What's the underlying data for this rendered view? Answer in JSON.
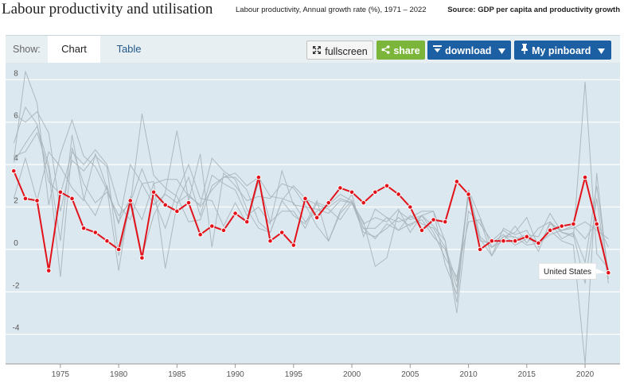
{
  "header": {
    "title": "Labour productivity and utilisation",
    "subtitle": "Labour productivity, Annual growth rate (%), 1971 – 2022",
    "source": "Source: GDP per capita and productivity growth"
  },
  "toolbar": {
    "show_label": "Show:",
    "tabs": [
      {
        "label": "Chart"
      },
      {
        "label": "Table"
      }
    ],
    "fullscreen_label": "fullscreen",
    "share_label": "share",
    "download_label": "download",
    "pinboard_label": "My pinboard",
    "icons": {
      "fullscreen": "expand-arrows-icon",
      "share": "share-icon",
      "download": "download-arrow-icon",
      "pinboard": "pin-icon",
      "caret": "caret-down-icon"
    }
  },
  "colors": {
    "plot_background": "#dbe8ef",
    "highlight_series": "#e3121a",
    "background_series": "#a9b4ba",
    "grid": "#ffffff",
    "accent_blue": "#1c5fa3",
    "share_green": "#7bb539"
  },
  "chart_data": {
    "type": "line",
    "title": "",
    "xlabel": "",
    "ylabel": "",
    "xlim": [
      1970.3,
      2023
    ],
    "ylim": [
      -5.4,
      8.8
    ],
    "xticks": [
      1975,
      1980,
      1985,
      1990,
      1995,
      2000,
      2005,
      2010,
      2015,
      2020
    ],
    "yticks": [
      -4,
      -2,
      0,
      2,
      4,
      6,
      8
    ],
    "grid": true,
    "highlight": {
      "name": "United States",
      "x": [
        1971,
        1972,
        1973,
        1974,
        1975,
        1976,
        1977,
        1978,
        1979,
        1980,
        1981,
        1982,
        1983,
        1984,
        1985,
        1986,
        1987,
        1988,
        1989,
        1990,
        1991,
        1992,
        1993,
        1994,
        1995,
        1996,
        1997,
        1998,
        1999,
        2000,
        2001,
        2002,
        2003,
        2004,
        2005,
        2006,
        2007,
        2008,
        2009,
        2010,
        2011,
        2012,
        2013,
        2014,
        2015,
        2016,
        2017,
        2018,
        2019,
        2020,
        2021,
        2022
      ],
      "values": [
        3.7,
        2.4,
        2.3,
        -1.0,
        2.7,
        2.4,
        1.0,
        0.8,
        0.4,
        0.0,
        2.3,
        -0.4,
        2.7,
        2.1,
        1.8,
        2.2,
        0.7,
        1.1,
        0.9,
        1.7,
        1.3,
        3.4,
        0.4,
        0.8,
        0.2,
        2.4,
        1.5,
        2.2,
        2.9,
        2.7,
        2.2,
        2.7,
        3.0,
        2.6,
        2.0,
        0.9,
        1.4,
        1.3,
        3.2,
        2.6,
        0.0,
        0.4,
        0.4,
        0.4,
        0.6,
        0.3,
        0.9,
        1.1,
        1.2,
        3.4,
        1.2,
        -1.1
      ]
    },
    "background_series": [
      {
        "x": [
          1971,
          1972,
          1973,
          1974,
          1975,
          1976,
          1977,
          1978,
          1979,
          1980,
          1981,
          1982,
          1983,
          1984,
          1985,
          1986,
          1987,
          1988,
          1989,
          1990,
          1991,
          1992,
          1993,
          1994,
          1995,
          1996,
          1997,
          1998,
          1999,
          2000,
          2001,
          2002,
          2003,
          2004,
          2005,
          2006,
          2007,
          2008,
          2009,
          2010,
          2011,
          2012,
          2013,
          2014,
          2015,
          2016,
          2017,
          2018,
          2019,
          2020,
          2021,
          2022
        ],
        "values": [
          4.2,
          8.4,
          6.9,
          2.1,
          4.5,
          6.1,
          4.4,
          3.9,
          2.8,
          1.3,
          2.4,
          1.4,
          3.1,
          3.3,
          3.3,
          2.5,
          2.1,
          4.3,
          3.7,
          3.3,
          1.9,
          1.0,
          0.8,
          2.3,
          1.6,
          1.2,
          2.3,
          0.4,
          1.7,
          2.3,
          1.0,
          0.5,
          1.2,
          0.9,
          1.6,
          1.2,
          1.0,
          0.1,
          -1.5,
          2.5,
          0.4,
          0.3,
          0.7,
          0.2,
          0.5,
          0.3,
          0.7,
          0.9,
          1.0,
          1.3,
          0.9,
          0.5
        ]
      },
      {
        "x": [
          1971,
          1972,
          1973,
          1974,
          1975,
          1976,
          1977,
          1978,
          1979,
          1980,
          1981,
          1982,
          1983,
          1984,
          1985,
          1986,
          1987,
          1988,
          1989,
          1990,
          1991,
          1992,
          1993,
          1994,
          1995,
          1996,
          1997,
          1998,
          1999,
          2000,
          2001,
          2002,
          2003,
          2004,
          2005,
          2006,
          2007,
          2008,
          2009,
          2010,
          2011,
          2012,
          2013,
          2014,
          2015,
          2016,
          2017,
          2018,
          2019,
          2020,
          2021,
          2022
        ],
        "values": [
          6.4,
          6.0,
          6.5,
          5.5,
          1.8,
          4.2,
          3.7,
          4.4,
          3.9,
          -0.3,
          2.1,
          6.4,
          3.5,
          2.9,
          2.5,
          1.3,
          1.4,
          3.0,
          3.4,
          3.6,
          3.0,
          3.4,
          2.5,
          2.4,
          2.2,
          1.3,
          1.8,
          2.1,
          2.6,
          2.3,
          1.2,
          1.5,
          1.3,
          1.9,
          0.8,
          1.6,
          1.8,
          -0.7,
          -2.1,
          2.8,
          0.6,
          0.1,
          0.6,
          0.8,
          1.5,
          0.1,
          1.2,
          0.9,
          1.1,
          0.5,
          1.3,
          0.1
        ]
      },
      {
        "x": [
          1971,
          1972,
          1973,
          1974,
          1975,
          1976,
          1977,
          1978,
          1979,
          1980,
          1981,
          1982,
          1983,
          1984,
          1985,
          1986,
          1987,
          1988,
          1989,
          1990,
          1991,
          1992,
          1993,
          1994,
          1995,
          1996,
          1997,
          1998,
          1999,
          2000,
          2001,
          2002,
          2003,
          2004,
          2005,
          2006,
          2007,
          2008,
          2009,
          2010,
          2011,
          2012,
          2013,
          2014,
          2015,
          2016,
          2017,
          2018,
          2019,
          2020,
          2021,
          2022
        ],
        "values": [
          5.0,
          6.7,
          5.9,
          3.2,
          2.6,
          4.6,
          4.0,
          4.7,
          4.0,
          2.1,
          1.4,
          3.1,
          2.1,
          2.6,
          2.2,
          2.6,
          2.0,
          2.8,
          3.4,
          3.4,
          2.8,
          1.3,
          0.8,
          2.3,
          3.0,
          2.4,
          2.1,
          1.9,
          1.4,
          2.2,
          0.8,
          0.6,
          1.0,
          1.5,
          1.1,
          1.6,
          1.1,
          0.4,
          -3.0,
          1.8,
          1.2,
          0.4,
          0.9,
          0.5,
          0.7,
          0.6,
          1.7,
          0.8,
          0.7,
          -1.6,
          2.4,
          -1.6
        ]
      },
      {
        "x": [
          1971,
          1972,
          1973,
          1974,
          1975,
          1976,
          1977,
          1978,
          1979,
          1980,
          1981,
          1982,
          1983,
          1984,
          1985,
          1986,
          1987,
          1988,
          1989,
          1990,
          1991,
          1992,
          1993,
          1994,
          1995,
          1996,
          1997,
          1998,
          1999,
          2000,
          2001,
          2002,
          2003,
          2004,
          2005,
          2006,
          2007,
          2008,
          2009,
          2010,
          2011,
          2012,
          2013,
          2014,
          2015,
          2016,
          2017,
          2018,
          2019,
          2020,
          2021,
          2022
        ],
        "values": [
          4.4,
          4.6,
          5.5,
          3.8,
          -1.3,
          4.8,
          3.1,
          2.2,
          2.7,
          1.6,
          2.2,
          3.8,
          2.4,
          1.0,
          2.7,
          4.0,
          2.4,
          2.3,
          1.1,
          2.2,
          1.2,
          3.2,
          1.3,
          1.8,
          1.8,
          1.0,
          2.2,
          2.0,
          2.4,
          2.2,
          1.3,
          -0.8,
          -0.4,
          1.8,
          1.4,
          1.6,
          0.8,
          -0.4,
          -1.3,
          1.3,
          1.4,
          -0.3,
          1.0,
          0.7,
          0.9,
          -0.1,
          1.3,
          0.8,
          0.6,
          7.9,
          -0.2,
          -0.9
        ]
      },
      {
        "x": [
          1971,
          1972,
          1973,
          1974,
          1975,
          1976,
          1977,
          1978,
          1979,
          1980,
          1981,
          1982,
          1983,
          1984,
          1985,
          1986,
          1987,
          1988,
          1989,
          1990,
          1991,
          1992,
          1993,
          1994,
          1995,
          1996,
          1997,
          1998,
          1999,
          2000,
          2001,
          2002,
          2003,
          2004,
          2005,
          2006,
          2007,
          2008,
          2009,
          2010,
          2011,
          2012,
          2013,
          2014,
          2015,
          2016,
          2017,
          2018,
          2019,
          2020,
          2021,
          2022
        ],
        "values": [
          4.1,
          5.0,
          5.8,
          4.0,
          0.4,
          5.4,
          2.4,
          1.6,
          3.0,
          1.2,
          4.0,
          3.1,
          3.2,
          -0.9,
          2.1,
          3.4,
          1.6,
          3.5,
          3.1,
          2.8,
          1.6,
          2.0,
          1.2,
          3.7,
          2.1,
          2.0,
          1.9,
          1.7,
          2.3,
          2.2,
          1.0,
          1.0,
          1.5,
          1.3,
          1.5,
          1.8,
          1.8,
          0.4,
          -2.5,
          2.8,
          1.5,
          0.1,
          0.4,
          1.1,
          0.3,
          1.0,
          1.3,
          0.5,
          0.8,
          -0.6,
          3.0,
          -1.2
        ]
      },
      {
        "x": [
          1971,
          1972,
          1973,
          1974,
          1975,
          1976,
          1977,
          1978,
          1979,
          1980,
          1981,
          1982,
          1983,
          1984,
          1985,
          1986,
          1987,
          1988,
          1989,
          1990,
          1991,
          1992,
          1993,
          1994,
          1995,
          1996,
          1997,
          1998,
          1999,
          2000,
          2001,
          2002,
          2003,
          2004,
          2005,
          2006,
          2007,
          2008,
          2009,
          2010,
          2011,
          2012,
          2013,
          2014,
          2015,
          2016,
          2017,
          2018,
          2019,
          2020,
          2021,
          2022
        ],
        "values": [
          2.4,
          4.3,
          2.3,
          4.6,
          3.9,
          2.9,
          2.3,
          4.5,
          2.9,
          -1.0,
          2.5,
          -0.3,
          1.6,
          2.7,
          5.6,
          2.3,
          4.5,
          0.1,
          3.6,
          3.0,
          2.3,
          2.5,
          2.4,
          3.1,
          2.9,
          2.1,
          1.1,
          0.4,
          1.8,
          2.6,
          0.6,
          1.9,
          1.5,
          0.9,
          1.2,
          1.4,
          0.6,
          0.0,
          -1.8,
          2.8,
          0.5,
          -0.3,
          0.6,
          0.6,
          0.2,
          0.3,
          0.9,
          0.4,
          0.2,
          -5.4,
          3.6,
          -1.4
        ]
      }
    ],
    "callout_label": "United States"
  }
}
